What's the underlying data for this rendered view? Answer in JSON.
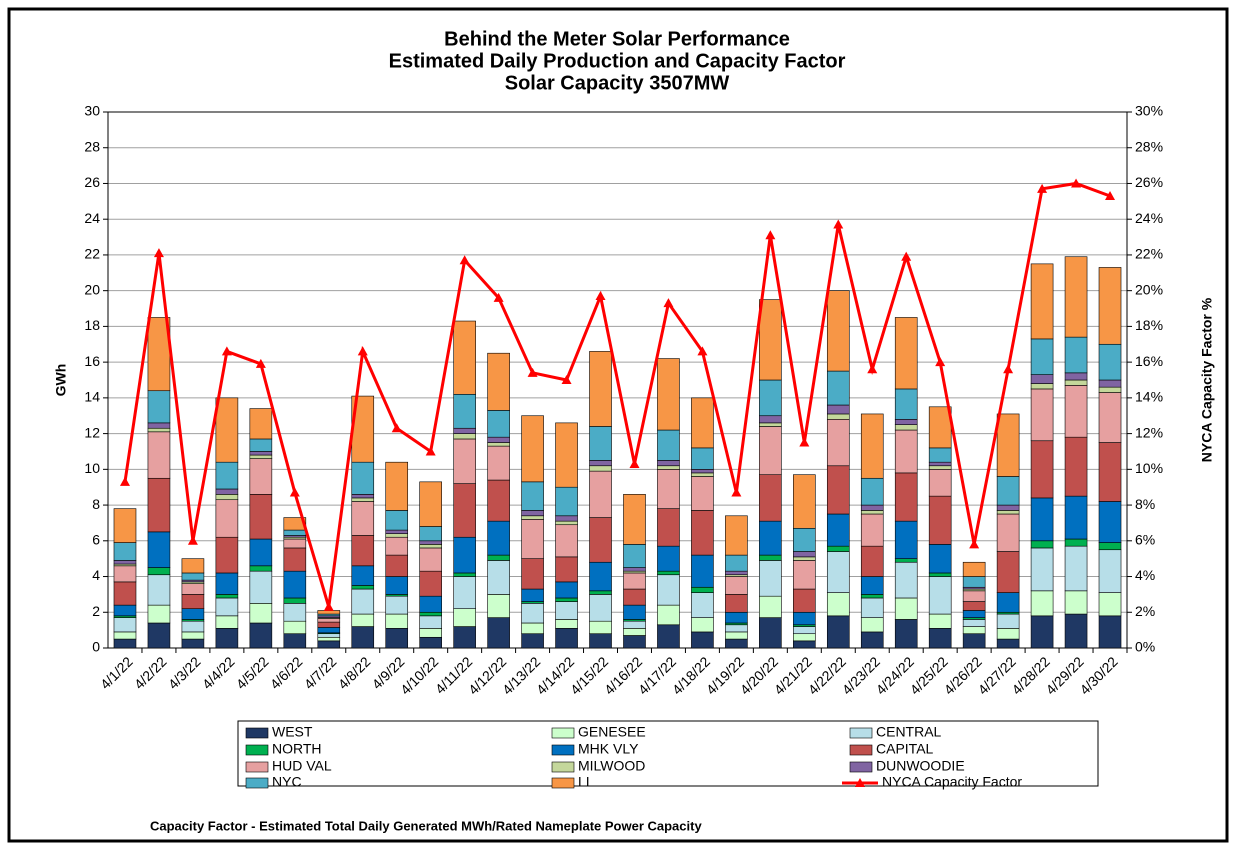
{
  "chart_data": {
    "type": "bar",
    "stacked": true,
    "title": [
      "Behind the Meter Solar Performance",
      "Estimated Daily Production and Capacity Factor",
      "Solar Capacity 3507MW"
    ],
    "ylabel": "GWh",
    "y2label": "NYCA Capacity Factor %",
    "footnote": "Capacity Factor  - Estimated Total Daily Generated MWh/Rated Nameplate Power Capacity",
    "categories": [
      "4/1/22",
      "4/2/22",
      "4/3/22",
      "4/4/22",
      "4/5/22",
      "4/6/22",
      "4/7/22",
      "4/8/22",
      "4/9/22",
      "4/10/22",
      "4/11/22",
      "4/12/22",
      "4/13/22",
      "4/14/22",
      "4/15/22",
      "4/16/22",
      "4/17/22",
      "4/18/22",
      "4/19/22",
      "4/20/22",
      "4/21/22",
      "4/22/22",
      "4/23/22",
      "4/24/22",
      "4/25/22",
      "4/26/22",
      "4/27/22",
      "4/28/22",
      "4/29/22",
      "4/30/22"
    ],
    "ylim": [
      0,
      30
    ],
    "yticks": [
      0,
      2,
      4,
      6,
      8,
      10,
      12,
      14,
      16,
      18,
      20,
      22,
      24,
      26,
      28,
      30
    ],
    "y2lim": [
      0,
      30
    ],
    "y2ticks": [
      {
        "value": 0,
        "label": "0%"
      },
      {
        "value": 2,
        "label": "2%"
      },
      {
        "value": 4,
        "label": "4%"
      },
      {
        "value": 6,
        "label": "6%"
      },
      {
        "value": 8,
        "label": "8%"
      },
      {
        "value": 10,
        "label": "10%"
      },
      {
        "value": 12,
        "label": "12%"
      },
      {
        "value": 14,
        "label": "14%"
      },
      {
        "value": 16,
        "label": "16%"
      },
      {
        "value": 18,
        "label": "18%"
      },
      {
        "value": 20,
        "label": "20%"
      },
      {
        "value": 22,
        "label": "22%"
      },
      {
        "value": 24,
        "label": "24%"
      },
      {
        "value": 26,
        "label": "26%"
      },
      {
        "value": 28,
        "label": "28%"
      },
      {
        "value": 30,
        "label": "30%"
      }
    ],
    "grid": true,
    "series": [
      {
        "name": "WEST",
        "color": "#1f3864",
        "values": [
          0.5,
          1.4,
          0.5,
          1.1,
          1.4,
          0.8,
          0.4,
          1.2,
          1.1,
          0.6,
          1.2,
          1.7,
          0.8,
          1.1,
          0.8,
          0.7,
          1.3,
          0.9,
          0.5,
          1.7,
          0.4,
          1.8,
          0.9,
          1.6,
          1.1,
          0.8,
          0.5,
          1.8,
          1.9,
          1.8
        ]
      },
      {
        "name": "GENESEE",
        "color": "#ccffcc",
        "values": [
          0.4,
          1.0,
          0.4,
          0.7,
          1.1,
          0.7,
          0.2,
          0.7,
          0.8,
          0.5,
          1.0,
          1.3,
          0.6,
          0.5,
          0.7,
          0.4,
          1.1,
          0.8,
          0.4,
          1.2,
          0.4,
          1.3,
          0.8,
          1.2,
          0.8,
          0.4,
          0.6,
          1.4,
          1.3,
          1.3
        ]
      },
      {
        "name": "CENTRAL",
        "color": "#b7dee8",
        "values": [
          0.8,
          1.7,
          0.6,
          1.0,
          1.8,
          1.0,
          0.2,
          1.4,
          1.0,
          0.7,
          1.8,
          1.9,
          1.1,
          1.0,
          1.5,
          0.4,
          1.7,
          1.4,
          0.4,
          2.0,
          0.4,
          2.3,
          1.1,
          2.0,
          2.1,
          0.4,
          0.8,
          2.4,
          2.5,
          2.4
        ]
      },
      {
        "name": "NORTH",
        "color": "#00b050",
        "values": [
          0.1,
          0.4,
          0.1,
          0.2,
          0.3,
          0.3,
          0.05,
          0.2,
          0.1,
          0.2,
          0.2,
          0.3,
          0.1,
          0.2,
          0.2,
          0.1,
          0.2,
          0.3,
          0.1,
          0.3,
          0.1,
          0.3,
          0.2,
          0.2,
          0.2,
          0.1,
          0.1,
          0.4,
          0.4,
          0.4
        ]
      },
      {
        "name": "MHK VLY",
        "color": "#0070c0",
        "values": [
          0.6,
          2.0,
          0.6,
          1.2,
          1.5,
          1.5,
          0.3,
          1.1,
          1.0,
          0.9,
          2.0,
          1.9,
          0.7,
          0.9,
          1.6,
          0.8,
          1.4,
          1.8,
          0.6,
          1.9,
          0.7,
          1.8,
          1.0,
          2.1,
          1.6,
          0.4,
          1.1,
          2.4,
          2.4,
          2.3
        ]
      },
      {
        "name": "CAPITAL",
        "color": "#c0504d",
        "values": [
          1.3,
          3.0,
          0.8,
          2.0,
          2.5,
          1.3,
          0.3,
          1.7,
          1.2,
          1.4,
          3.0,
          2.3,
          1.7,
          1.4,
          2.5,
          0.9,
          2.1,
          2.5,
          1.0,
          2.6,
          1.3,
          2.7,
          1.7,
          2.7,
          2.7,
          0.5,
          2.3,
          3.2,
          3.3,
          3.3
        ]
      },
      {
        "name": "HUD VAL",
        "color": "#e6a0a0",
        "values": [
          0.9,
          2.6,
          0.6,
          2.1,
          2.0,
          0.5,
          0.2,
          1.9,
          1.0,
          1.3,
          2.5,
          1.9,
          2.2,
          1.8,
          2.6,
          0.9,
          2.2,
          1.9,
          1.0,
          2.7,
          1.6,
          2.6,
          1.8,
          2.4,
          1.5,
          0.6,
          2.1,
          2.9,
          2.9,
          2.8
        ]
      },
      {
        "name": "MILWOOD",
        "color": "#c4d79b",
        "values": [
          0.1,
          0.2,
          0.1,
          0.3,
          0.2,
          0.1,
          0.05,
          0.2,
          0.2,
          0.2,
          0.3,
          0.2,
          0.2,
          0.2,
          0.3,
          0.1,
          0.2,
          0.2,
          0.1,
          0.2,
          0.2,
          0.3,
          0.2,
          0.3,
          0.2,
          0.1,
          0.2,
          0.3,
          0.3,
          0.3
        ]
      },
      {
        "name": "DUNWOODIE",
        "color": "#8064a2",
        "values": [
          0.2,
          0.3,
          0.1,
          0.3,
          0.2,
          0.1,
          0.1,
          0.2,
          0.2,
          0.2,
          0.3,
          0.3,
          0.3,
          0.3,
          0.3,
          0.2,
          0.3,
          0.2,
          0.2,
          0.4,
          0.3,
          0.5,
          0.3,
          0.3,
          0.2,
          0.1,
          0.3,
          0.5,
          0.4,
          0.4
        ]
      },
      {
        "name": "NYC",
        "color": "#4bacc6",
        "values": [
          1.0,
          1.8,
          0.4,
          1.5,
          0.7,
          0.3,
          0.1,
          1.8,
          1.1,
          0.8,
          1.9,
          1.5,
          1.6,
          1.6,
          1.9,
          1.3,
          1.7,
          1.2,
          0.9,
          2.0,
          1.3,
          1.9,
          1.5,
          1.7,
          0.8,
          0.6,
          1.6,
          2.0,
          2.0,
          2.0
        ]
      },
      {
        "name": "LI",
        "color": "#f79646",
        "values": [
          1.9,
          4.1,
          0.8,
          3.6,
          1.7,
          0.7,
          0.2,
          3.7,
          2.7,
          2.5,
          4.1,
          3.2,
          3.7,
          3.6,
          4.2,
          2.8,
          4.0,
          2.8,
          2.2,
          4.5,
          3.0,
          4.5,
          3.6,
          4.0,
          2.3,
          0.8,
          3.5,
          4.2,
          4.5,
          4.3
        ]
      },
      {
        "name": "NYCA Capacity Factor",
        "color": "#ff0000",
        "type": "line",
        "axis": "y2",
        "values": [
          9.3,
          22.1,
          6.0,
          16.6,
          15.9,
          8.7,
          2.3,
          16.6,
          12.3,
          11.0,
          21.7,
          19.6,
          15.4,
          15.0,
          19.7,
          10.3,
          19.3,
          16.6,
          8.7,
          23.1,
          11.5,
          23.7,
          15.6,
          21.9,
          16.0,
          5.8,
          15.6,
          25.7,
          26.0,
          25.3
        ]
      }
    ]
  }
}
